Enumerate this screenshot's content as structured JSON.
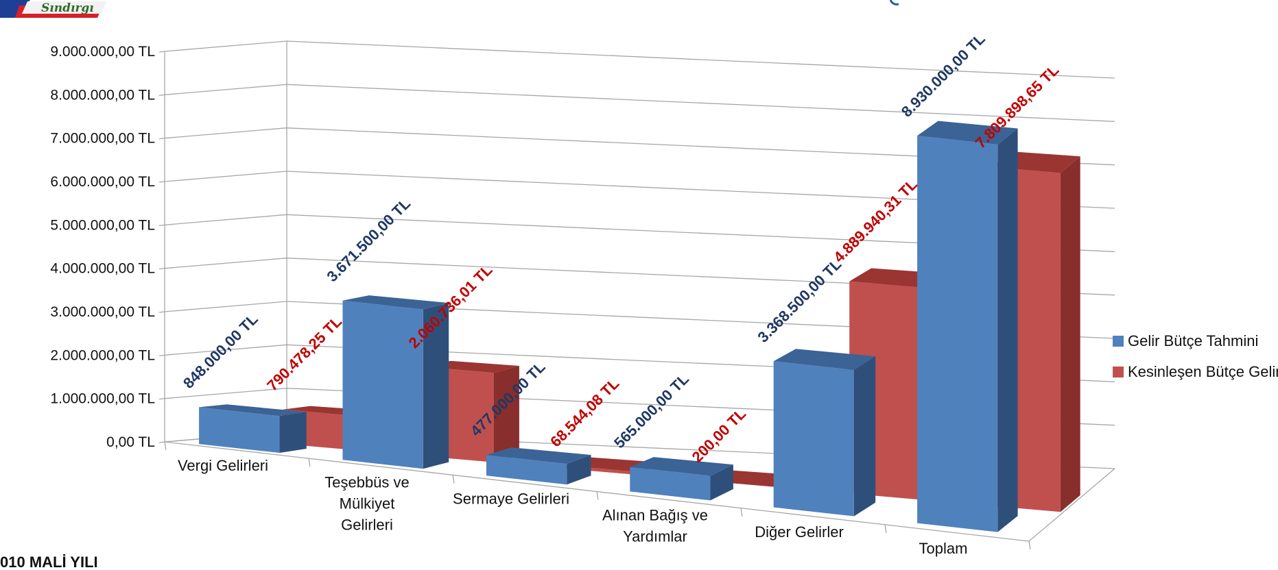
{
  "footer": {
    "year_label": "010 MALİ YILI"
  },
  "logo": {
    "text": "Sındırgı"
  },
  "colors": {
    "gelir_front": "#4f81bd",
    "gelir_top": "#3b6395",
    "gelir_side": "#2f4f7b",
    "kesin_front": "#c0504d",
    "kesin_top": "#9b3532",
    "kesin_side": "#882e2c",
    "label_blue": "#1f3864",
    "label_red": "#c00000"
  },
  "chart_data": {
    "type": "bar",
    "categories": [
      [
        "Vergi Gelirleri"
      ],
      [
        "Teşebbüs ve",
        "Mülkiyet",
        "Gelirleri"
      ],
      [
        "Sermaye Gelirleri"
      ],
      [
        "Alınan Bağış ve",
        "Yardımlar"
      ],
      [
        "Diğer Gelirler"
      ],
      [
        "Toplam"
      ]
    ],
    "series": [
      {
        "name": "Gelir Bütçe Tahmini",
        "values": [
          848000,
          3671500,
          477000,
          565000,
          3368500,
          8930000
        ],
        "labels": [
          "848.000,00 TL",
          "3.671.500,00 TL",
          "477.000,00 TL",
          "565.000,00 TL",
          "3.368.500,00 TL",
          "8.930.000,00 TL"
        ]
      },
      {
        "name": "Kesinleşen Bütçe Geliri",
        "values": [
          790478.25,
          2060736.01,
          68544.08,
          200,
          4889940.31,
          7809898.65
        ],
        "labels": [
          "790.478,25 TL",
          "2.060.736,01 TL",
          "68.544,08 TL",
          "200,00 TL",
          "4.889.940,31 TL",
          "7.809.898,65 TL"
        ]
      }
    ],
    "y_ticks": [
      "0,00 TL",
      "1.000.000,00 TL",
      "2.000.000,00 TL",
      "3.000.000,00 TL",
      "4.000.000,00 TL",
      "5.000.000,00 TL",
      "6.000.000,00 TL",
      "7.000.000,00 TL",
      "8.000.000,00 TL",
      "9.000.000,00 TL"
    ],
    "ylim": [
      0,
      9000000
    ],
    "grid": true,
    "legend_position": "right"
  }
}
